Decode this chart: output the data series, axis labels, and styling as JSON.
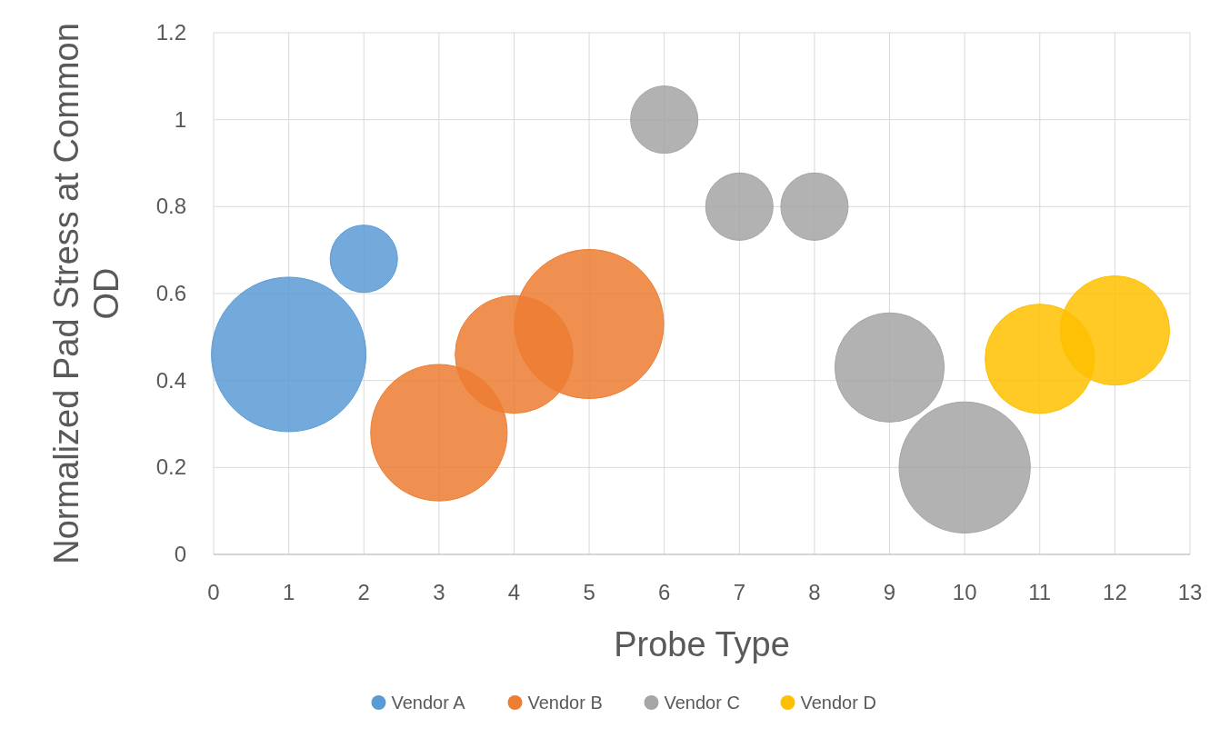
{
  "chart_data": {
    "type": "bubble",
    "xlabel": "Probe Type",
    "ylabel": "Normalized Pad Stress at Common OD",
    "xlim": [
      0,
      13
    ],
    "xticks": [
      0,
      1,
      2,
      3,
      4,
      5,
      6,
      7,
      8,
      9,
      10,
      11,
      12,
      13
    ],
    "ylim": [
      0,
      1.2
    ],
    "yticks": [
      0,
      0.2,
      0.4,
      0.6,
      0.8,
      1,
      1.2
    ],
    "grid": true,
    "legend": "bottom",
    "series": [
      {
        "name": "Vendor A",
        "color": "#5b9bd5",
        "x": [
          1,
          2
        ],
        "values": [
          0.46,
          0.68
        ],
        "sizes": [
          1,
          0.19
        ]
      },
      {
        "name": "Vendor B",
        "color": "#ed7d31",
        "x": [
          3,
          4,
          5
        ],
        "values": [
          0.28,
          0.46,
          0.53
        ],
        "sizes": [
          0.78,
          0.58,
          0.93
        ]
      },
      {
        "name": "Vendor C",
        "color": "#a5a5a5",
        "x": [
          6,
          7,
          8,
          9,
          10
        ],
        "values": [
          1,
          0.8,
          0.8,
          0.43,
          0.2
        ],
        "sizes": [
          0.19,
          0.19,
          0.19,
          0.5,
          0.72
        ]
      },
      {
        "name": "Vendor D",
        "color": "#ffc000",
        "x": [
          11,
          12
        ],
        "values": [
          0.45,
          0.515
        ],
        "sizes": [
          0.5,
          0.5
        ]
      }
    ]
  }
}
